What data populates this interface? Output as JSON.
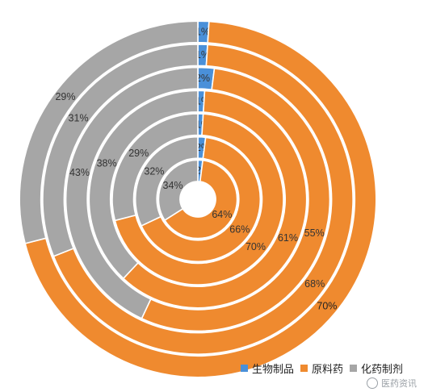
{
  "chart_data": {
    "type": "donut",
    "categories": [
      "生物制品",
      "原料药",
      "化药制剂"
    ],
    "colors": [
      "#4a90d9",
      "#ef8a2f",
      "#a6a6a6"
    ],
    "rings": [
      {
        "values": [
          2,
          64,
          34
        ],
        "labels": [
          "2%",
          "64%",
          "34%"
        ]
      },
      {
        "values": [
          2,
          66,
          32
        ],
        "labels": [
          "2%",
          "66%",
          "32%"
        ]
      },
      {
        "values": [
          1,
          70,
          29
        ],
        "labels": [
          "1%",
          "70%",
          "29%"
        ]
      },
      {
        "values": [
          1,
          61,
          38
        ],
        "labels": [
          "1%",
          "61%",
          "38%"
        ]
      },
      {
        "values": [
          2,
          55,
          43
        ],
        "labels": [
          "2%",
          "55%",
          "43%"
        ]
      },
      {
        "values": [
          1,
          68,
          31
        ],
        "labels": [
          "1%",
          "68%",
          "31%"
        ]
      },
      {
        "values": [
          1,
          70,
          29
        ],
        "labels": [
          "1%",
          "70%",
          "29%"
        ]
      }
    ],
    "legend_position": "bottom-right"
  },
  "watermark": {
    "text": "医药资讯"
  }
}
